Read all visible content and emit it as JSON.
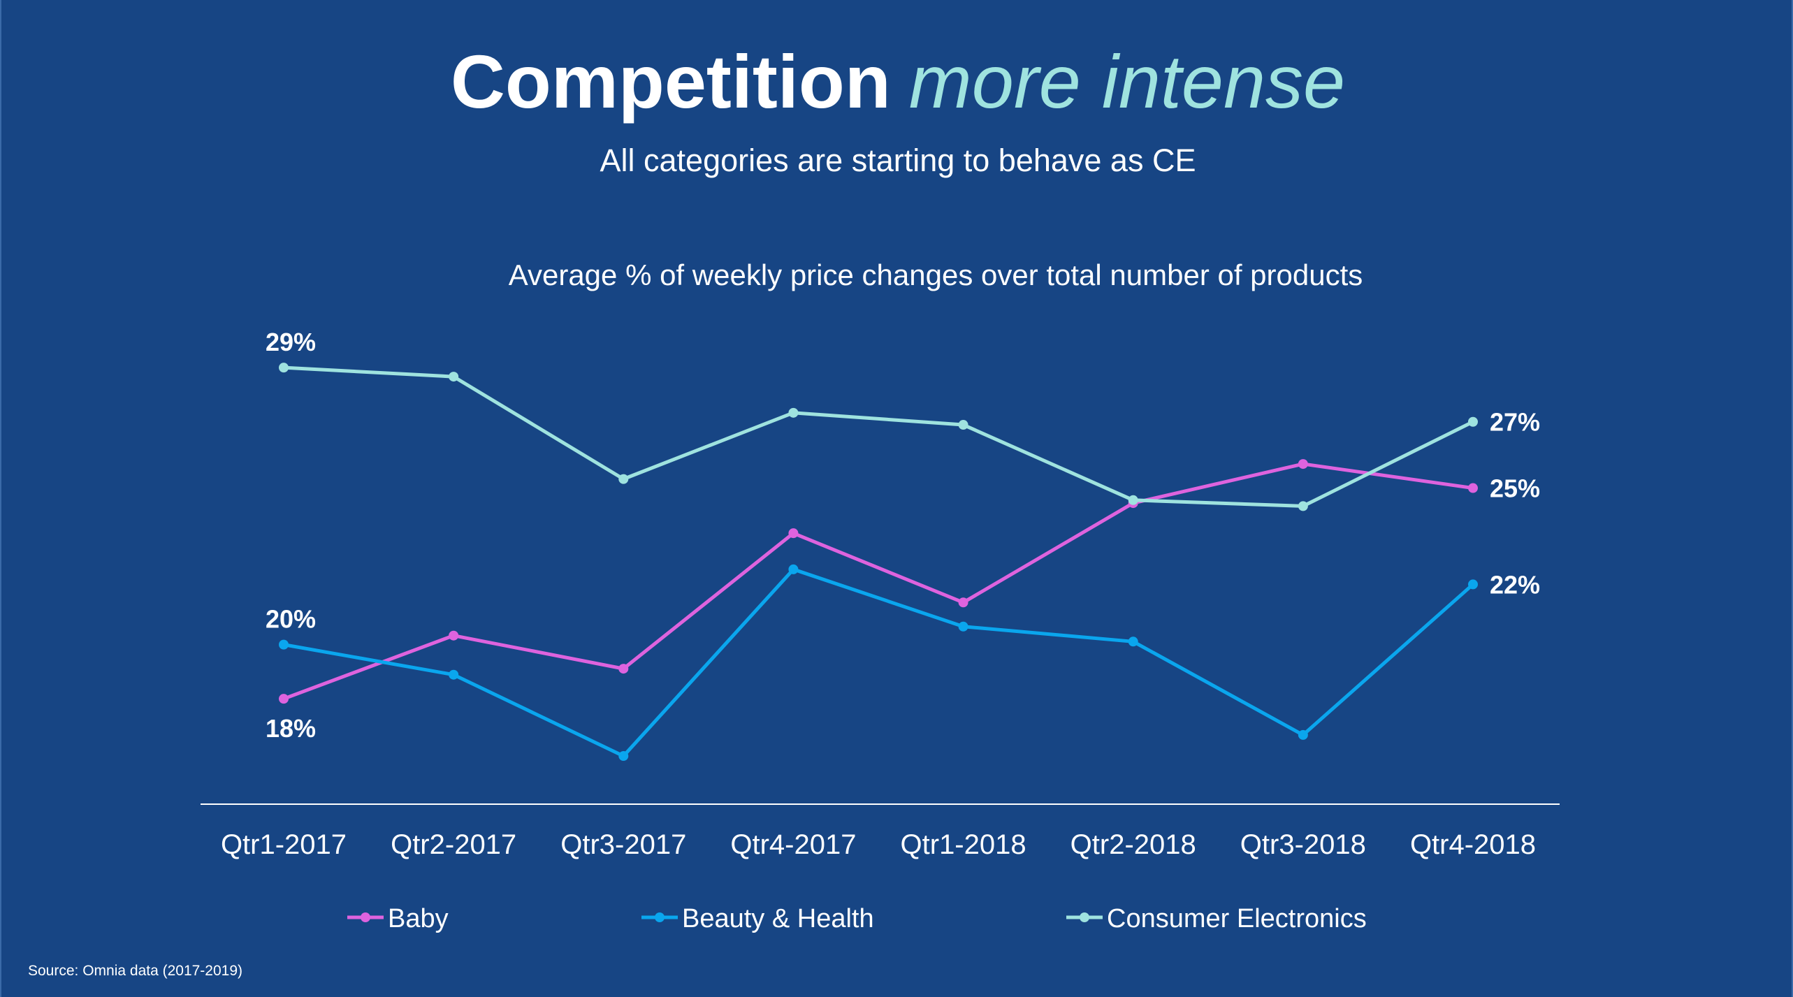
{
  "header": {
    "title_bold": "Competition",
    "title_light": "more intense",
    "subtitle": "All categories are starting to behave as CE"
  },
  "footer": {
    "source": "Source: Omnia data (2017-2019)"
  },
  "colors": {
    "background": "#174584",
    "baby": "#de63de",
    "beauty_health": "#0aa6ee",
    "consumer_electronics": "#9fe3df"
  },
  "chart_data": {
    "type": "line",
    "title": "Average % of weekly price changes over total number of products",
    "xlabel": "",
    "ylabel": "",
    "categories": [
      "Qtr1-2017",
      "Qtr2-2017",
      "Qtr3-2017",
      "Qtr4-2017",
      "Qtr1-2018",
      "Qtr2-2018",
      "Qtr3-2018",
      "Qtr4-2018"
    ],
    "series": [
      {
        "name": "Baby",
        "color": "#de63de",
        "values": [
          18.0,
          20.1,
          19.0,
          23.5,
          21.2,
          24.5,
          25.8,
          25.0
        ]
      },
      {
        "name": "Beauty & Health",
        "color": "#0aa6ee",
        "values": [
          19.8,
          18.8,
          16.1,
          22.3,
          20.4,
          19.9,
          16.8,
          21.8
        ]
      },
      {
        "name": "Consumer Electronics",
        "color": "#9fe3df",
        "values": [
          29.0,
          28.7,
          25.3,
          27.5,
          27.1,
          24.6,
          24.4,
          27.2
        ]
      }
    ],
    "data_labels": [
      {
        "series": 2,
        "index": 0,
        "text": "29%"
      },
      {
        "series": 1,
        "index": 0,
        "text": "20%"
      },
      {
        "series": 0,
        "index": 0,
        "text": "18%"
      },
      {
        "series": 2,
        "index": 7,
        "text": "27%"
      },
      {
        "series": 0,
        "index": 7,
        "text": "25%"
      },
      {
        "series": 1,
        "index": 7,
        "text": "22%"
      }
    ],
    "ylim": [
      14.5,
      31
    ],
    "grid": false,
    "legend_position": "bottom"
  }
}
